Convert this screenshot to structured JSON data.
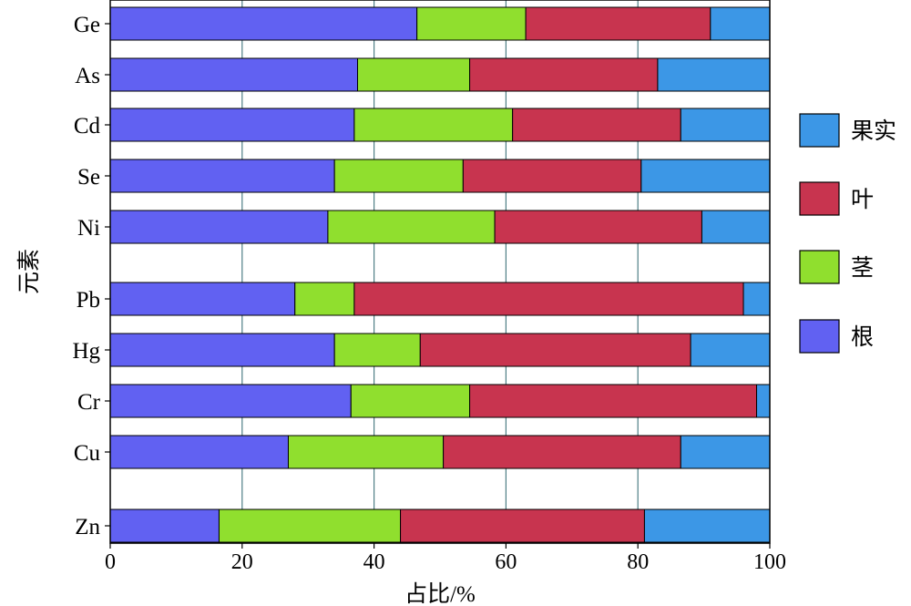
{
  "chart_data": {
    "type": "bar",
    "orientation": "horizontal",
    "stacked": true,
    "xlabel": "占比/%",
    "ylabel": "元素",
    "xlim": [
      0,
      100
    ],
    "xticks": [
      "0",
      "20",
      "40",
      "60",
      "80",
      "100"
    ],
    "grid": "vertical",
    "legend_position": "right",
    "categories": [
      "Ge",
      "As",
      "Cd",
      "Se",
      "Ni",
      "Pb",
      "Hg",
      "Cr",
      "Cu",
      "Zn"
    ],
    "series": [
      {
        "name": "根",
        "color": "#6161f2",
        "values": [
          46.5,
          37.5,
          37.0,
          34.0,
          33.0,
          28.0,
          34.0,
          36.5,
          27.0,
          16.5
        ]
      },
      {
        "name": "茎",
        "color": "#90df2e",
        "values": [
          16.5,
          17.0,
          24.0,
          19.5,
          25.3,
          9.0,
          13.0,
          18.0,
          23.5,
          27.5
        ]
      },
      {
        "name": "叶",
        "color": "#c8344f",
        "values": [
          28.0,
          28.5,
          25.5,
          27.0,
          31.4,
          59.0,
          41.0,
          43.5,
          36.0,
          37.0
        ]
      },
      {
        "name": "果实",
        "color": "#3c97e6",
        "values": [
          9.0,
          17.0,
          13.5,
          19.5,
          10.3,
          4.0,
          12.0,
          2.0,
          13.5,
          19.0
        ]
      }
    ]
  }
}
